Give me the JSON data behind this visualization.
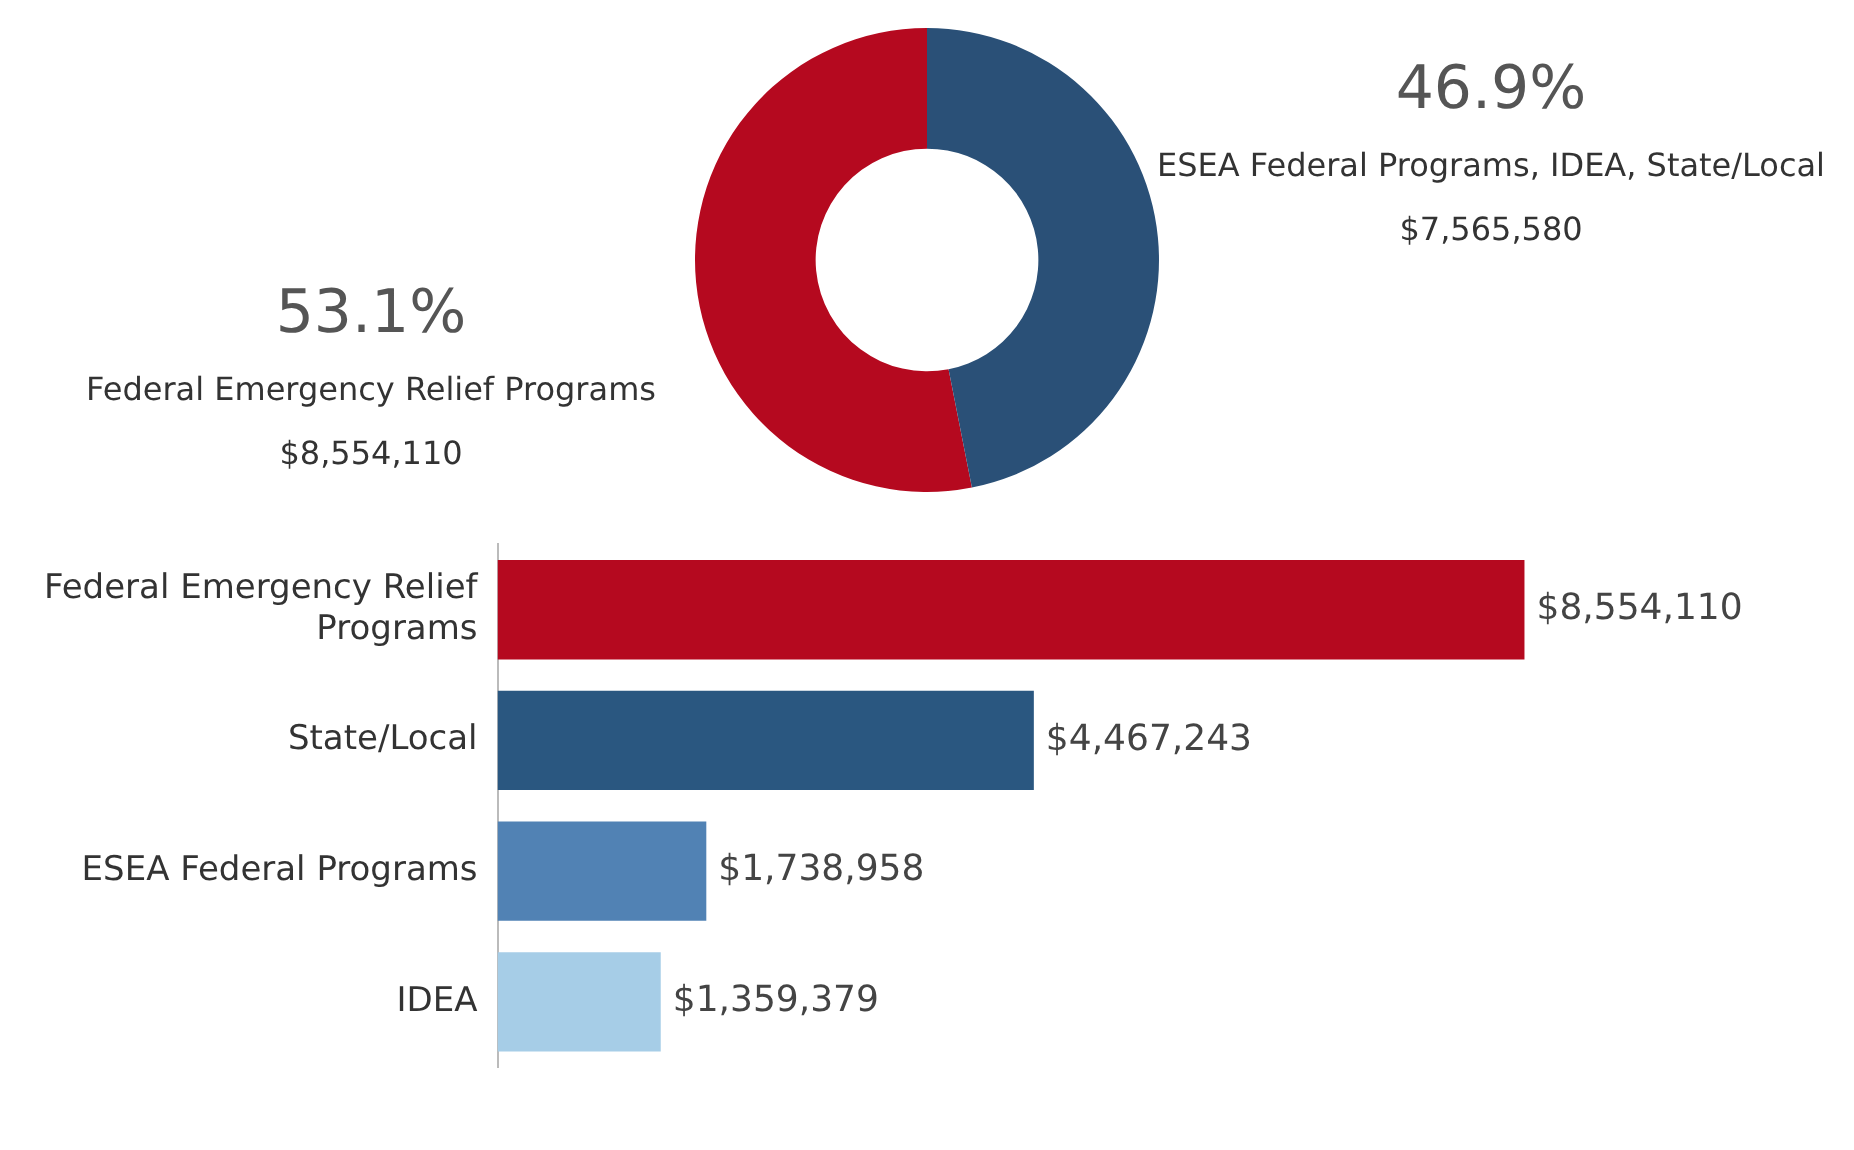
{
  "chart_data": [
    {
      "type": "donut",
      "categories": [
        "Federal Emergency Relief Programs",
        "ESEA Federal Programs, IDEA, State/Local"
      ],
      "values": [
        53.1,
        46.9
      ],
      "colors": [
        "#b5091f",
        "#2a5077"
      ],
      "value_labels": [
        "53.1%",
        "46.9%"
      ],
      "annotations": [
        {
          "text": "$8,554,110",
          "x": "Federal Emergency Relief Programs"
        },
        {
          "text": "$7,565,580",
          "x": "ESEA Federal Programs, IDEA, State/Local"
        }
      ],
      "legend": false
    },
    {
      "type": "bar",
      "orientation": "horizontal",
      "categories": [
        "Federal Emergency Relief Programs",
        "State/Local",
        "ESEA Federal Programs",
        "IDEA"
      ],
      "values": [
        8554110,
        4467243,
        1738958,
        1359379
      ],
      "colors": [
        "#b5091f",
        "#2a5780",
        "#5182b4",
        "#a6cde7"
      ],
      "value_labels": [
        "$8,554,110",
        "$4,467,243",
        "$1,738,958",
        "$1,359,379"
      ],
      "tick_labels": "y",
      "grid": false,
      "legend": false
    }
  ]
}
